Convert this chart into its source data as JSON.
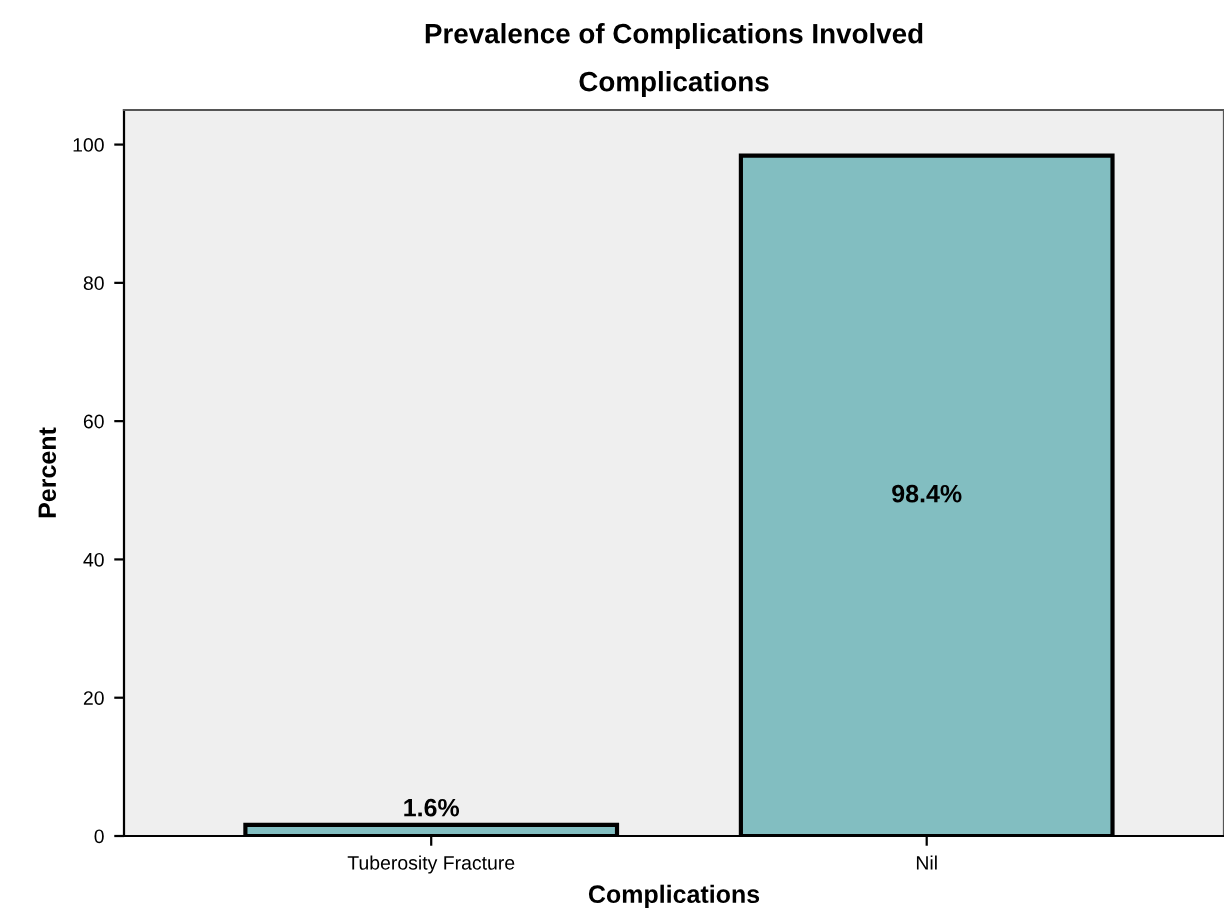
{
  "chart_data": {
    "type": "bar",
    "title": "Prevalence of Complications Involved",
    "subtitle": "Complications",
    "xlabel": "Complications",
    "ylabel": "Percent",
    "categories": [
      "Tuberosity Fracture",
      "Nil"
    ],
    "values": [
      1.6,
      98.4
    ],
    "value_labels": [
      "1.6%",
      "98.4%"
    ],
    "color": "#82bec1",
    "ylim": [
      0,
      105
    ],
    "yticks": [
      0,
      20,
      40,
      60,
      80,
      100
    ],
    "grid": false,
    "legend": false
  }
}
